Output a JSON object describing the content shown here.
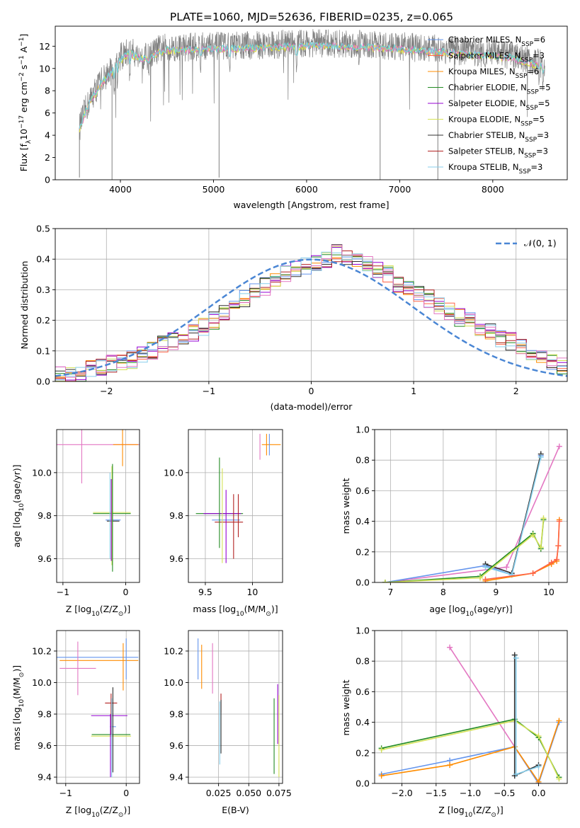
{
  "figure": {
    "title": "PLATE=1060, MJD=52636, FIBERID=0235, z=0.065"
  },
  "palette": {
    "Chabrier MILES": "#6495ed",
    "Salpeter MILES": "#ff6347",
    "Kroupa MILES": "#ff8c00",
    "Chabrier ELODIE": "#228b22",
    "Salpeter ELODIE": "#9400d3",
    "Kroupa ELODIE": "#d4e157",
    "Chabrier STELIB": "#303030",
    "Salpeter STELIB": "#b22222",
    "Kroupa STELIB": "#87ceeb",
    "extra_pink": "#e377c2",
    "data_gray": "#808080",
    "model_cyan": "#6fd6d9",
    "model_yellow": "#e0e040",
    "normal_blue": "#4a86d4"
  },
  "chart_data": [
    {
      "type": "line",
      "id": "spectrum",
      "title": "PLATE=1060, MJD=52636, FIBERID=0235, z=0.065",
      "xlabel": "wavelength [Angstrom, rest frame]",
      "ylabel_main": "Flux [f",
      "ylabel_sub": "λ",
      "ylabel_tail": "10",
      "ylabel_exp1": "−17",
      "ylabel_mid": " erg cm",
      "ylabel_exp2": "−2",
      "ylabel_mid2": " s",
      "ylabel_exp3": "−1",
      "ylabel_end": " A",
      "ylabel_exp4": "−1",
      "ylabel_close": "]",
      "xlim": [
        3300,
        8800
      ],
      "ylim": [
        0,
        13.8
      ],
      "xticks": [
        4000,
        5000,
        6000,
        7000,
        8000
      ],
      "yticks": [
        0,
        2,
        4,
        6,
        8,
        10,
        12
      ],
      "grid": false,
      "legend_position": "right",
      "legend": [
        {
          "name": "Chabrier MILES",
          "nssp": "6"
        },
        {
          "name": "Salpeter MILES",
          "nssp": "3"
        },
        {
          "name": "Kroupa MILES",
          "nssp": "6"
        },
        {
          "name": "Chabrier ELODIE",
          "nssp": "5"
        },
        {
          "name": "Salpeter ELODIE",
          "nssp": "5"
        },
        {
          "name": "Kroupa ELODIE",
          "nssp": "5"
        },
        {
          "name": "Chabrier STELIB",
          "nssp": "3"
        },
        {
          "name": "Salpeter STELIB",
          "nssp": "3"
        },
        {
          "name": "Kroupa STELIB",
          "nssp": "3"
        }
      ],
      "legend_prefix": ", N",
      "legend_sub": "SSP",
      "legend_eq": "=",
      "continuum": [
        [
          3560,
          4.7
        ],
        [
          3620,
          6.2
        ],
        [
          3700,
          7.6
        ],
        [
          3800,
          9.0
        ],
        [
          3900,
          9.8
        ],
        [
          4000,
          11.0
        ],
        [
          4100,
          11.6
        ],
        [
          4200,
          11.2
        ],
        [
          4300,
          11.0
        ],
        [
          4400,
          11.7
        ],
        [
          4500,
          11.9
        ],
        [
          4700,
          11.9
        ],
        [
          4900,
          12.0
        ],
        [
          5200,
          12.0
        ],
        [
          5500,
          12.1
        ],
        [
          5800,
          12.2
        ],
        [
          6100,
          12.3
        ],
        [
          6400,
          12.2
        ],
        [
          6700,
          12.1
        ],
        [
          7000,
          12.0
        ],
        [
          7300,
          11.8
        ],
        [
          7600,
          11.6
        ],
        [
          7900,
          11.4
        ],
        [
          8200,
          11.2
        ],
        [
          8500,
          10.5
        ],
        [
          8560,
          10.3
        ]
      ],
      "dips": [
        [
          3933,
          8.5
        ],
        [
          3968,
          9.0
        ],
        [
          4101,
          9.8
        ],
        [
          4304,
          9.9
        ],
        [
          4861,
          10.6
        ],
        [
          5175,
          10.5
        ],
        [
          5893,
          10.6
        ],
        [
          6563,
          11.2
        ],
        [
          8498,
          9.4
        ],
        [
          8542,
          9.0
        ]
      ]
    },
    {
      "type": "bar",
      "id": "residuals",
      "xlabel": "(data-model)/error",
      "ylabel": "Normed distribution",
      "xlim": [
        -2.5,
        2.5
      ],
      "ylim": [
        0,
        0.5
      ],
      "xticks": [
        -2,
        -1,
        0,
        1,
        2
      ],
      "yticks": [
        0.0,
        0.1,
        0.2,
        0.3,
        0.4,
        0.5
      ],
      "grid": true,
      "legend_label": "𝒩(0, 1)",
      "legend_position": "top-right",
      "bin_edges_start": -2.5,
      "bin_width": 0.1,
      "series_values": [
        [
          0.02,
          0.02,
          0.03,
          0.04,
          0.05,
          0.06,
          0.06,
          0.07,
          0.09,
          0.1,
          0.12,
          0.13,
          0.15,
          0.16,
          0.18,
          0.2,
          0.22,
          0.25,
          0.27,
          0.3,
          0.31,
          0.33,
          0.35,
          0.37,
          0.38,
          0.39,
          0.4,
          0.42,
          0.4,
          0.39,
          0.38,
          0.36,
          0.35,
          0.32,
          0.31,
          0.29,
          0.27,
          0.25,
          0.23,
          0.21,
          0.2,
          0.18,
          0.16,
          0.14,
          0.13,
          0.11,
          0.09,
          0.08,
          0.06,
          0.05
        ]
      ]
    },
    {
      "type": "scatter",
      "id": "age_vs_Z",
      "xlabel_pre": "Z [log",
      "xlabel_sub": "10",
      "xlabel_post": "(Z/Z",
      "xlabel_odot": "⊙",
      "xlabel_end": ")]",
      "ylabel_pre": "age  [log",
      "ylabel_sub": "10",
      "ylabel_post": "(age/yr)]",
      "xlim": [
        -1.1,
        0.22
      ],
      "ylim": [
        9.49,
        10.2
      ],
      "xticks": [
        -1,
        0
      ],
      "yticks": [
        9.6,
        9.8,
        10.0
      ],
      "grid": true
    },
    {
      "type": "scatter",
      "id": "age_vs_mass",
      "xlabel_pre": "mass [log",
      "xlabel_sub": "10",
      "xlabel_post": "(M/M",
      "xlabel_odot": "⊙",
      "xlabel_end": ")]",
      "xlim": [
        9.32,
        10.32
      ],
      "ylim": [
        9.49,
        10.2
      ],
      "xticks": [
        9.5,
        10.0
      ],
      "yticks": [
        9.6,
        9.8,
        10.0
      ],
      "grid": true
    },
    {
      "type": "line",
      "id": "weight_vs_age",
      "xlabel_pre": "age  [log",
      "xlabel_sub": "10",
      "xlabel_post": "(age/yr)]",
      "ylabel": "mass weight",
      "xlim": [
        6.7,
        10.35
      ],
      "ylim": [
        0,
        1.0
      ],
      "xticks": [
        7,
        8,
        9,
        10
      ],
      "yticks": [
        0.0,
        0.2,
        0.4,
        0.6,
        0.8,
        1.0
      ],
      "grid": true,
      "series": [
        {
          "color": "#e377c2",
          "points": [
            [
              6.9,
              0.0
            ],
            [
              9.2,
              0.1
            ],
            [
              10.2,
              0.89
            ]
          ]
        },
        {
          "color": "#6495ed",
          "points": [
            [
              6.9,
              0.0
            ],
            [
              8.8,
              0.11
            ],
            [
              9.3,
              0.05
            ],
            [
              9.85,
              0.83
            ]
          ]
        },
        {
          "color": "#303030",
          "points": [
            [
              8.8,
              0.12
            ],
            [
              9.3,
              0.06
            ],
            [
              9.85,
              0.84
            ]
          ]
        },
        {
          "color": "#87ceeb",
          "points": [
            [
              8.8,
              0.1
            ],
            [
              9.3,
              0.05
            ],
            [
              9.85,
              0.82
            ]
          ]
        },
        {
          "color": "#228b22",
          "points": [
            [
              6.9,
              0.0
            ],
            [
              8.7,
              0.04
            ],
            [
              9.7,
              0.32
            ],
            [
              9.85,
              0.22
            ],
            [
              9.9,
              0.41
            ]
          ]
        },
        {
          "color": "#d4e157",
          "points": [
            [
              6.9,
              0.0
            ],
            [
              8.7,
              0.03
            ],
            [
              9.7,
              0.31
            ],
            [
              9.85,
              0.23
            ],
            [
              9.9,
              0.42
            ]
          ]
        },
        {
          "color": "#ff8c00",
          "points": [
            [
              8.8,
              0.01
            ],
            [
              9.7,
              0.06
            ],
            [
              10.05,
              0.12
            ],
            [
              10.15,
              0.14
            ],
            [
              10.18,
              0.24
            ],
            [
              10.2,
              0.41
            ]
          ]
        },
        {
          "color": "#ff6347",
          "points": [
            [
              8.8,
              0.02
            ],
            [
              9.7,
              0.06
            ],
            [
              10.05,
              0.13
            ],
            [
              10.15,
              0.15
            ],
            [
              10.18,
              0.24
            ],
            [
              10.2,
              0.4
            ]
          ]
        }
      ]
    },
    {
      "type": "scatter",
      "id": "mass_vs_Z",
      "xlabel_pre": "Z [log",
      "xlabel_sub": "10",
      "xlabel_post": "(Z/Z",
      "xlabel_odot": "⊙",
      "xlabel_end": ")]",
      "ylabel_pre": "mass [log",
      "ylabel_sub": "10",
      "ylabel_post": "(M/M",
      "ylabel_odot": "⊙",
      "ylabel_end": ")]",
      "xlim": [
        -1.15,
        0.22
      ],
      "ylim": [
        9.36,
        10.33
      ],
      "xticks": [
        -1,
        0
      ],
      "yticks": [
        9.4,
        9.6,
        9.8,
        10.0,
        10.2
      ],
      "grid": true
    },
    {
      "type": "scatter",
      "id": "mass_vs_ebv",
      "xlabel": "E(B-V)",
      "xlim": [
        0.0,
        0.078
      ],
      "ylim": [
        9.36,
        10.33
      ],
      "xticks": [
        0.025,
        0.05,
        0.075
      ],
      "xtick_labels": [
        "0.025",
        "0.050",
        "0.075"
      ],
      "yticks": [
        9.4,
        9.6,
        9.8,
        10.0,
        10.2
      ],
      "grid": true
    },
    {
      "type": "line",
      "id": "weight_vs_Z",
      "xlabel_pre": "Z [log",
      "xlabel_sub": "10",
      "xlabel_post": "(Z/Z",
      "xlabel_odot": "⊙",
      "xlabel_end": ")]",
      "ylabel": "mass weight",
      "xlim": [
        -2.4,
        0.42
      ],
      "ylim": [
        0,
        1.0
      ],
      "xticks": [
        -2.0,
        -1.5,
        -1.0,
        -0.5,
        0.0
      ],
      "xtick_labels": [
        "−2.0",
        "−1.5",
        "−1.0",
        "−0.5",
        "0.0"
      ],
      "yticks": [
        0.0,
        0.2,
        0.4,
        0.6,
        0.8,
        1.0
      ],
      "grid": true,
      "series": [
        {
          "color": "#e377c2",
          "points": [
            [
              -1.3,
              0.89
            ],
            [
              0.0,
              0.0
            ]
          ]
        },
        {
          "color": "#6495ed",
          "points": [
            [
              -2.3,
              0.06
            ],
            [
              -1.3,
              0.15
            ],
            [
              -0.35,
              0.24
            ],
            [
              0.0,
              0.0
            ],
            [
              0.3,
              0.4
            ]
          ]
        },
        {
          "color": "#ff8c00",
          "points": [
            [
              -2.3,
              0.05
            ],
            [
              -1.3,
              0.12
            ],
            [
              -0.35,
              0.24
            ],
            [
              0.0,
              0.01
            ],
            [
              0.3,
              0.41
            ]
          ]
        },
        {
          "color": "#228b22",
          "points": [
            [
              -2.3,
              0.23
            ],
            [
              -0.35,
              0.42
            ],
            [
              0.0,
              0.3
            ],
            [
              0.3,
              0.04
            ]
          ]
        },
        {
          "color": "#d4e157",
          "points": [
            [
              -2.3,
              0.22
            ],
            [
              -0.35,
              0.41
            ],
            [
              0.0,
              0.31
            ],
            [
              0.3,
              0.03
            ]
          ]
        },
        {
          "color": "#303030",
          "points": [
            [
              -0.35,
              0.84
            ],
            [
              -0.35,
              0.05
            ],
            [
              0.0,
              0.12
            ]
          ]
        },
        {
          "color": "#87ceeb",
          "points": [
            [
              -0.33,
              0.82
            ],
            [
              -0.33,
              0.06
            ],
            [
              0.0,
              0.11
            ]
          ]
        }
      ]
    }
  ]
}
